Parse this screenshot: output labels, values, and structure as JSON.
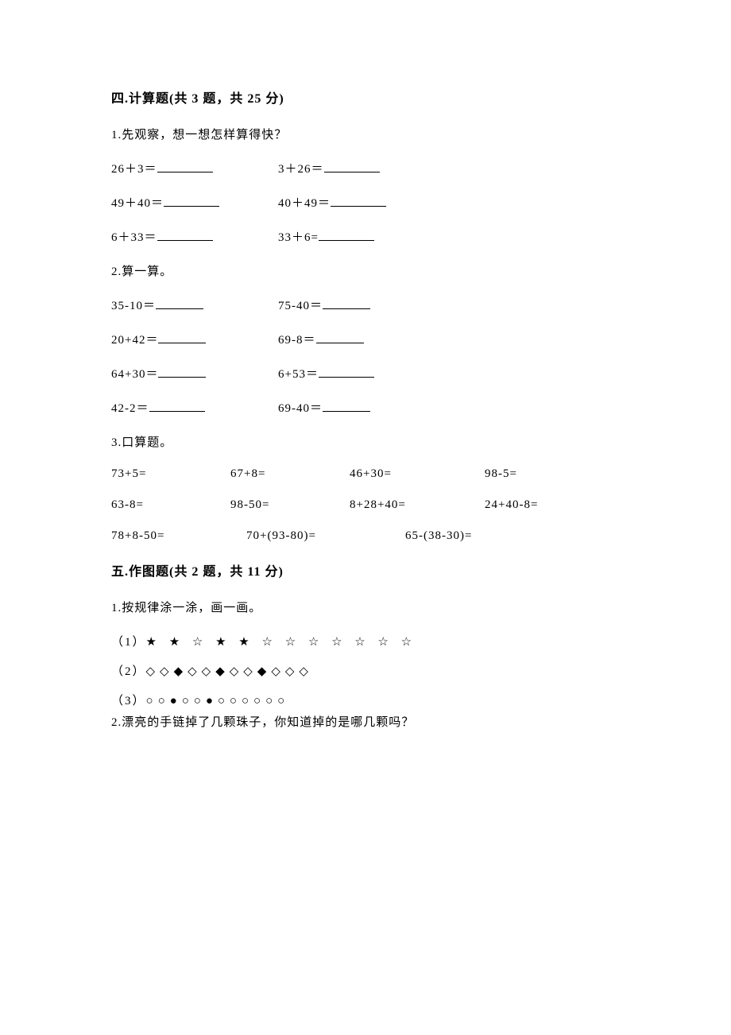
{
  "section4": {
    "header": "四.计算题(共 3 题，共 25 分)",
    "q1": {
      "intro": "1.先观察，想一想怎样算得快？",
      "pairs": [
        {
          "left": "26＋3＝",
          "right": "3＋26＝"
        },
        {
          "left": "49＋40＝",
          "right": "40＋49＝"
        },
        {
          "left": "6＋33＝",
          "right": "33＋6="
        }
      ]
    },
    "q2": {
      "intro": "2.算一算。",
      "pairs": [
        {
          "left": "35-10＝",
          "right": "75-40＝"
        },
        {
          "left": "20+42＝",
          "right": "69-8＝"
        },
        {
          "left": "64+30＝",
          "right": "6+53＝"
        },
        {
          "left": "42-2＝",
          "right": "69-40＝"
        }
      ]
    },
    "q3": {
      "intro": "3.口算题。",
      "rows4": [
        {
          "a": "73+5=",
          "b": "67+8=",
          "c": "46+30=",
          "d": "98-5="
        },
        {
          "a": "63-8=",
          "b": "98-50=",
          "c": "8+28+40=",
          "d": "24+40-8="
        }
      ],
      "row3": {
        "a": "78+8-50=",
        "b": "70+(93-80)=",
        "c": "65-(38-30)="
      }
    }
  },
  "section5": {
    "header": "五.作图题(共 2 题，共 11 分)",
    "q1": {
      "intro": "1.按规律涂一涂，画一画。",
      "lines": [
        {
          "num": "（1）",
          "syms": "★ ★ ☆ ★ ★ ☆ ☆ ☆ ☆ ☆ ☆ ☆"
        },
        {
          "num": "（2）",
          "syms": "◇◇◆◇◇◆◇◇◆◇◇◇"
        },
        {
          "num": "（3）",
          "syms": "○○●○○●○○○○○○"
        }
      ]
    },
    "q2": {
      "intro": "2.漂亮的手链掉了几颗珠子，你知道掉的是哪几颗吗？"
    }
  }
}
